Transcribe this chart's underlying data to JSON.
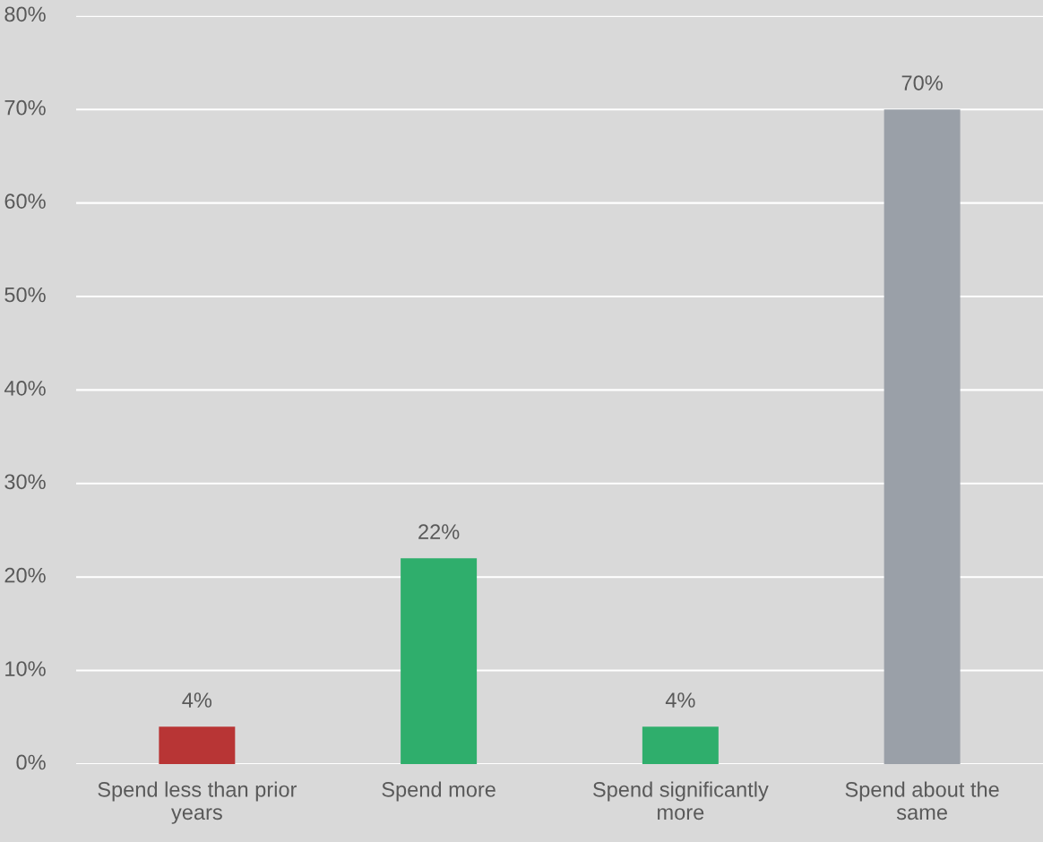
{
  "chart_data": {
    "type": "bar",
    "categories": [
      "Spend less than prior\nyears",
      "Spend more",
      "Spend significantly\nmore",
      "Spend about the\nsame"
    ],
    "values": [
      4,
      22,
      4,
      70
    ],
    "colors": [
      "#b83535",
      "#2fae6c",
      "#2fae6c",
      "#9aa0a8"
    ],
    "value_labels": [
      "4%",
      "22%",
      "4%",
      "70%"
    ],
    "ylim": [
      0,
      80
    ],
    "yticks": [
      {
        "value": 0,
        "label": "0%"
      },
      {
        "value": 10,
        "label": "10%"
      },
      {
        "value": 20,
        "label": "20%"
      },
      {
        "value": 30,
        "label": "30%"
      },
      {
        "value": 40,
        "label": "40%"
      },
      {
        "value": 50,
        "label": "50%"
      },
      {
        "value": 60,
        "label": "60%"
      },
      {
        "value": 70,
        "label": "70%"
      },
      {
        "value": 80,
        "label": "80%"
      }
    ],
    "grid": "y"
  }
}
